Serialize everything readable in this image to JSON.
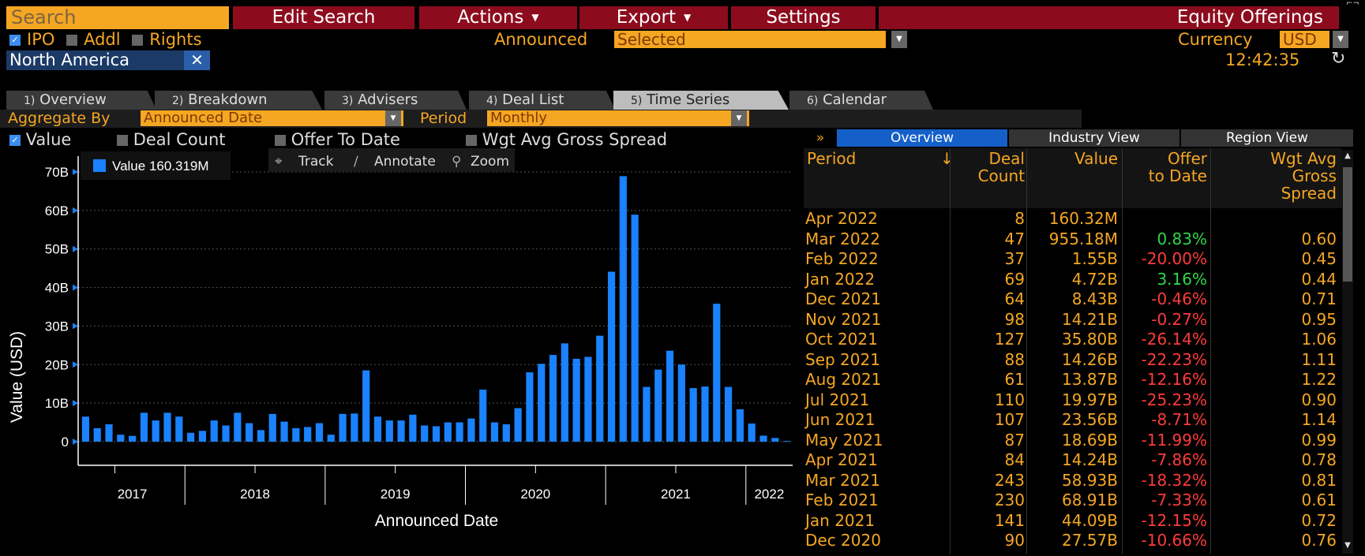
{
  "toolbar": {
    "search_placeholder": "Search",
    "edit_search": "Edit Search",
    "actions": "Actions",
    "export": "Export",
    "settings": "Settings",
    "title": "Equity Offerings"
  },
  "filters": {
    "ipo": "IPO",
    "addl": "Addl",
    "rights": "Rights",
    "announced_label": "Announced",
    "announced_value": "Selected",
    "currency_label": "Currency",
    "currency_value": "USD",
    "region": "North America",
    "time": "12:42:35"
  },
  "tabs": [
    {
      "num": "1)",
      "label": "Overview"
    },
    {
      "num": "2)",
      "label": "Breakdown"
    },
    {
      "num": "3)",
      "label": "Advisers"
    },
    {
      "num": "4)",
      "label": "Deal List"
    },
    {
      "num": "5)",
      "label": "Time Series"
    },
    {
      "num": "6)",
      "label": "Calendar"
    }
  ],
  "aggregate": {
    "label": "Aggregate By",
    "value": "Announced Date",
    "period_label": "Period",
    "period_value": "Monthly"
  },
  "series_toggles": {
    "value": "Value",
    "deal_count": "Deal Count",
    "offer_to_date": "Offer To Date",
    "wgt_avg": "Wgt Avg Gross Spread"
  },
  "chart_tools": {
    "track": "Track",
    "annotate": "Annotate",
    "zoom": "Zoom"
  },
  "panel_tabs": {
    "expand": "»",
    "overview": "Overview",
    "industry": "Industry View",
    "region": "Region View"
  },
  "table": {
    "headers": {
      "period": "Period",
      "sort": "↓",
      "deal_count_1": "Deal",
      "deal_count_2": "Count",
      "value": "Value",
      "offer_1": "Offer",
      "offer_2": "to Date",
      "wgt_1": "Wgt Avg",
      "wgt_2": "Gross",
      "wgt_3": "Spread"
    },
    "rows": [
      {
        "period": "Apr 2022",
        "count": "8",
        "value": "160.32M",
        "offer": "",
        "spread": ""
      },
      {
        "period": "Mar 2022",
        "count": "47",
        "value": "955.18M",
        "offer": "0.83%",
        "spread": "0.60"
      },
      {
        "period": "Feb 2022",
        "count": "37",
        "value": "1.55B",
        "offer": "-20.00%",
        "spread": "0.45"
      },
      {
        "period": "Jan 2022",
        "count": "69",
        "value": "4.72B",
        "offer": "3.16%",
        "spread": "0.44"
      },
      {
        "period": "Dec 2021",
        "count": "64",
        "value": "8.43B",
        "offer": "-0.46%",
        "spread": "0.71"
      },
      {
        "period": "Nov 2021",
        "count": "98",
        "value": "14.21B",
        "offer": "-0.27%",
        "spread": "0.95"
      },
      {
        "period": "Oct 2021",
        "count": "127",
        "value": "35.80B",
        "offer": "-26.14%",
        "spread": "1.06"
      },
      {
        "period": "Sep 2021",
        "count": "88",
        "value": "14.26B",
        "offer": "-22.23%",
        "spread": "1.11"
      },
      {
        "period": "Aug 2021",
        "count": "61",
        "value": "13.87B",
        "offer": "-12.16%",
        "spread": "1.22"
      },
      {
        "period": "Jul 2021",
        "count": "110",
        "value": "19.97B",
        "offer": "-25.23%",
        "spread": "0.90"
      },
      {
        "period": "Jun 2021",
        "count": "107",
        "value": "23.56B",
        "offer": "-8.71%",
        "spread": "1.14"
      },
      {
        "period": "May 2021",
        "count": "87",
        "value": "18.69B",
        "offer": "-11.99%",
        "spread": "0.99"
      },
      {
        "period": "Apr 2021",
        "count": "84",
        "value": "14.24B",
        "offer": "-7.86%",
        "spread": "0.78"
      },
      {
        "period": "Mar 2021",
        "count": "243",
        "value": "58.93B",
        "offer": "-18.32%",
        "spread": "0.81"
      },
      {
        "period": "Feb 2021",
        "count": "230",
        "value": "68.91B",
        "offer": "-7.33%",
        "spread": "0.61"
      },
      {
        "period": "Jan 2021",
        "count": "141",
        "value": "44.09B",
        "offer": "-12.15%",
        "spread": "0.72"
      },
      {
        "period": "Dec 2020",
        "count": "90",
        "value": "27.57B",
        "offer": "-10.66%",
        "spread": "0.76"
      }
    ]
  },
  "colors": {
    "accent": "#f5a623",
    "bar": "#1a82ff",
    "positive": "#2fd64a",
    "negative": "#ff3b3b",
    "toolbar": "#8c0c1e"
  },
  "chart_data": {
    "type": "bar",
    "ylabel": "Value (USD)",
    "xlabel": "Announced Date",
    "legend": "Value 160.319M",
    "yticks": [
      "0",
      "10B",
      "20B",
      "30B",
      "40B",
      "50B",
      "60B",
      "70B"
    ],
    "ylim": [
      0,
      70
    ],
    "year_labels": [
      "2017",
      "2018",
      "2019",
      "2020",
      "2021",
      "2022"
    ],
    "series": [
      {
        "name": "Value",
        "values": [
          6.5,
          3.5,
          4.5,
          1.8,
          1.5,
          7.5,
          5.5,
          7.5,
          6.5,
          2.3,
          2.8,
          5.5,
          4.2,
          7.5,
          4.8,
          3.0,
          7.2,
          5.2,
          3.5,
          3.8,
          4.8,
          1.8,
          7.2,
          7.3,
          18.5,
          6.5,
          5.5,
          5.5,
          7.0,
          4.2,
          4.0,
          5.0,
          5.0,
          6.0,
          13.5,
          5.0,
          4.5,
          8.7,
          18.0,
          20.2,
          22.5,
          25.5,
          21.5,
          22.0,
          27.5,
          44.1,
          68.9,
          58.9,
          14.2,
          18.7,
          23.6,
          20.0,
          13.9,
          14.3,
          35.8,
          14.2,
          8.4,
          4.7,
          1.55,
          0.96,
          0.16
        ]
      }
    ]
  }
}
